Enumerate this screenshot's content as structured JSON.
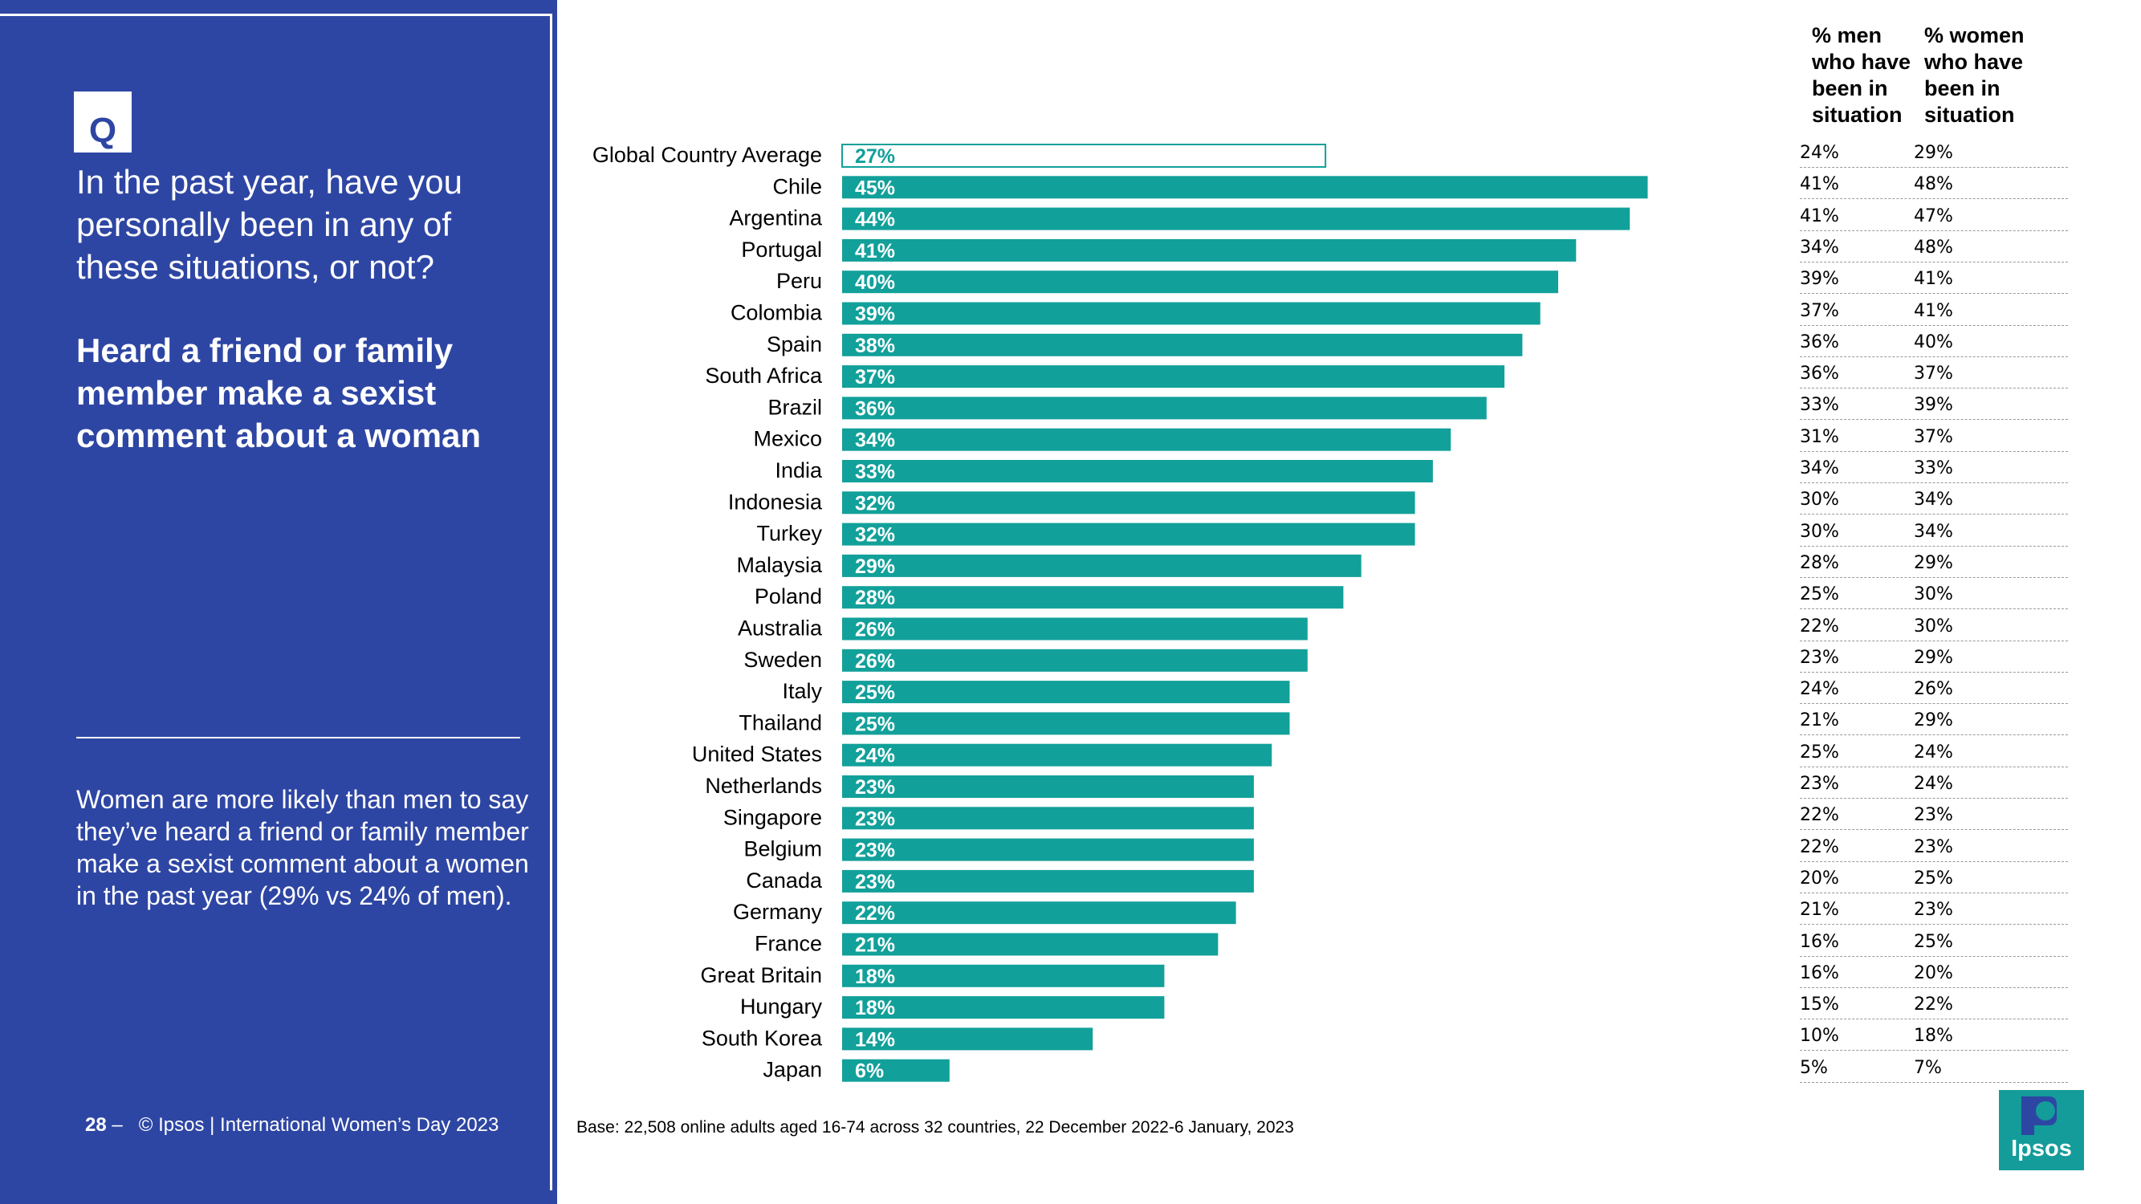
{
  "panel": {
    "badge": "Q",
    "question": "In the past year, have you personally been in any of these situations, or not?",
    "statement": "Heard a friend or family member make a sexist comment about a woman",
    "insight": "Women are more likely than men to say they’ve heard a friend or family member make a sexist comment about a women in the past year (29% vs 24% of men).",
    "page_number": "28",
    "page_dash": "–",
    "copyright": "© Ipsos | International Women’s Day 2023"
  },
  "base_note": "Base: 22,508 online adults aged 16-74 across 32 countries, 22 December 2022-6 January, 2023",
  "colors": {
    "panel": "#2e46a3",
    "bar": "#12a09a",
    "white": "#ffffff"
  },
  "chart_data": {
    "type": "bar",
    "orientation": "horizontal",
    "title": "Heard a friend or family member make a sexist comment about a woman",
    "xlim": [
      0,
      100
    ],
    "highlight_first": true,
    "categories": [
      "Global Country Average",
      "Chile",
      "Argentina",
      "Portugal",
      "Peru",
      "Colombia",
      "Spain",
      "South Africa",
      "Brazil",
      "Mexico",
      "India",
      "Indonesia",
      "Turkey",
      "Malaysia",
      "Poland",
      "Australia",
      "Sweden",
      "Italy",
      "Thailand",
      "United States",
      "Netherlands",
      "Singapore",
      "Belgium",
      "Canada",
      "Germany",
      "France",
      "Great Britain",
      "Hungary",
      "South Korea",
      "Japan"
    ],
    "values": [
      27,
      45,
      44,
      41,
      40,
      39,
      38,
      37,
      36,
      34,
      33,
      32,
      32,
      29,
      28,
      26,
      26,
      25,
      25,
      24,
      23,
      23,
      23,
      23,
      22,
      21,
      18,
      18,
      14,
      6
    ],
    "labels": [
      "27%",
      "45%",
      "44%",
      "41%",
      "40%",
      "39%",
      "38%",
      "37%",
      "36%",
      "34%",
      "33%",
      "32%",
      "32%",
      "29%",
      "28%",
      "26%",
      "26%",
      "25%",
      "25%",
      "24%",
      "23%",
      "23%",
      "23%",
      "23%",
      "22%",
      "21%",
      "18%",
      "18%",
      "14%",
      "6%"
    ]
  },
  "table": {
    "header_men": "% men who have been in situation",
    "header_women": "% women who have been in situation",
    "men": [
      "24%",
      "41%",
      "41%",
      "34%",
      "39%",
      "37%",
      "36%",
      "36%",
      "33%",
      "31%",
      "34%",
      "30%",
      "30%",
      "28%",
      "25%",
      "22%",
      "23%",
      "24%",
      "21%",
      "25%",
      "23%",
      "22%",
      "22%",
      "20%",
      "21%",
      "16%",
      "16%",
      "15%",
      "10%",
      "5%"
    ],
    "women": [
      "29%",
      "48%",
      "47%",
      "48%",
      "41%",
      "41%",
      "40%",
      "37%",
      "39%",
      "37%",
      "33%",
      "34%",
      "34%",
      "29%",
      "30%",
      "30%",
      "29%",
      "26%",
      "29%",
      "24%",
      "24%",
      "23%",
      "23%",
      "25%",
      "23%",
      "25%",
      "20%",
      "22%",
      "18%",
      "7%"
    ]
  },
  "logo": {
    "text": "Ipsos",
    "icon": "ipsos-logo-icon"
  }
}
